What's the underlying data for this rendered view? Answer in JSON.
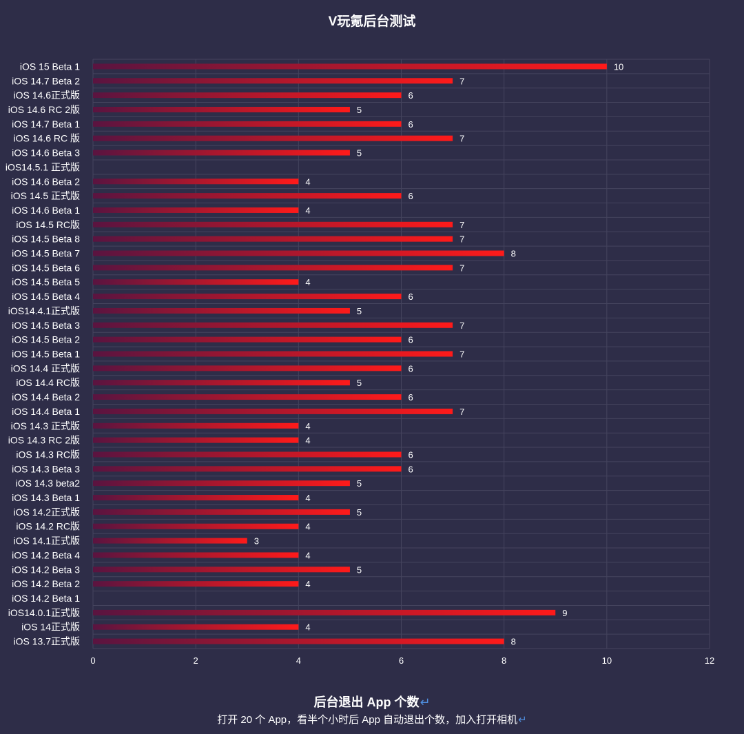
{
  "chart_data": {
    "type": "bar",
    "orientation": "horizontal",
    "title": "V玩氪后台测试",
    "xlim": [
      0,
      12
    ],
    "x_ticks": [
      "0",
      "2",
      "4",
      "6",
      "8",
      "10",
      "12"
    ],
    "grid": true,
    "categories": [
      "iOS 15 Beta 1",
      "iOS 14.7 Beta 2",
      "iOS 14.6正式版",
      "iOS 14.6 RC 2版",
      "iOS 14.7 Beta 1",
      "iOS 14.6 RC 版",
      "iOS 14.6 Beta 3",
      "iOS14.5.1 正式版",
      "iOS 14.6 Beta 2",
      "iOS 14.5 正式版",
      "iOS 14.6 Beta 1",
      "iOS 14.5 RC版",
      "iOS 14.5 Beta 8",
      "iOS 14.5 Beta 7",
      "iOS 14.5 Beta 6",
      "iOS 14.5 Beta 5",
      "iOS 14.5 Beta 4",
      "iOS14.4.1正式版",
      "iOS 14.5 Beta 3",
      "iOS 14.5 Beta 2",
      "iOS 14.5 Beta 1",
      "iOS 14.4 正式版",
      "iOS 14.4 RC版",
      "iOS 14.4 Beta 2",
      "iOS 14.4 Beta 1",
      "iOS 14.3 正式版",
      "iOS 14.3 RC 2版",
      "iOS 14.3 RC版",
      "iOS 14.3 Beta 3",
      "iOS 14.3 beta2",
      "iOS 14.3 Beta 1",
      "iOS 14.2正式版",
      "iOS 14.2 RC版",
      "iOS 14.1正式版",
      "iOS 14.2 Beta 4",
      "iOS 14.2 Beta 3",
      "iOS 14.2 Beta 2",
      "iOS 14.2 Beta 1",
      "iOS14.0.1正式版",
      "iOS 14正式版",
      "iOS 13.7正式版"
    ],
    "values": [
      10,
      7,
      6,
      5,
      6,
      7,
      5,
      null,
      4,
      6,
      4,
      7,
      7,
      8,
      7,
      4,
      6,
      5,
      7,
      6,
      7,
      6,
      5,
      6,
      7,
      4,
      4,
      6,
      6,
      5,
      4,
      5,
      4,
      3,
      4,
      5,
      4,
      null,
      9,
      4,
      8
    ],
    "colors": {
      "bar_start": "#5a1440",
      "bar_end": "#ff1a1a",
      "grid": "#45445e",
      "background": "#2e2d48"
    }
  },
  "footer": {
    "title": "后台退出 App 个数",
    "subtitle": "打开 20 个 App，看半个小时后 App 自动退出个数，加入打开相机",
    "enter_symbol": "↵"
  }
}
